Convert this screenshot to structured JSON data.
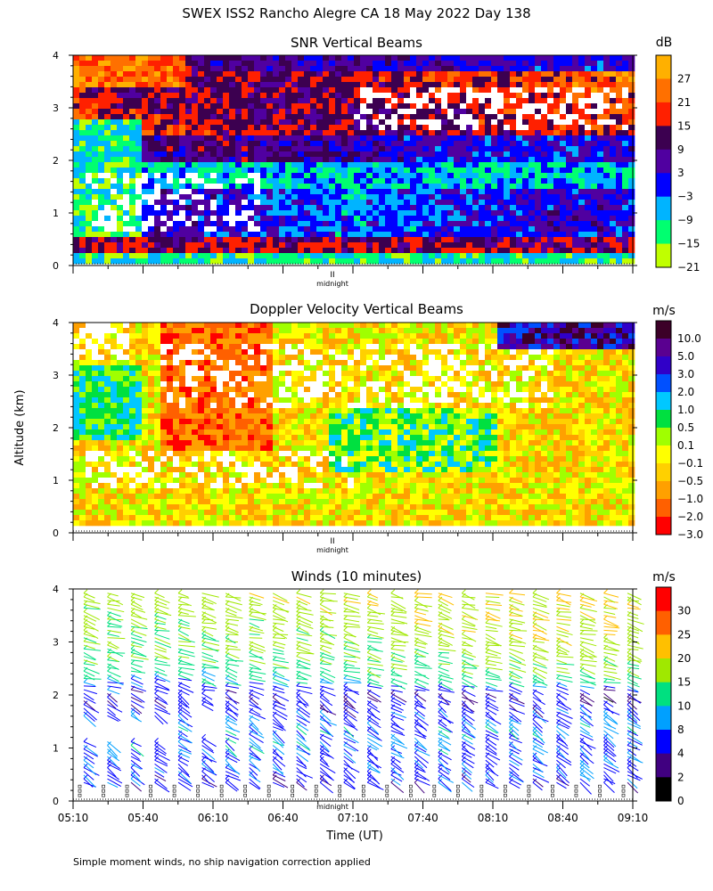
{
  "figure": {
    "title": "SWEX ISS2 Rancho Alegre CA  18 May 2022 Day 138",
    "ylabel": "Altitude (km)",
    "xlabel": "Time (UT)",
    "footnote": "Simple moment winds, no ship navigation correction applied",
    "marker_label": "midnight",
    "marker_symbol": "II"
  },
  "chart_data": [
    {
      "type": "heatmap",
      "title": "SNR Vertical Beams",
      "colorbar_unit": "dB",
      "colorbar_ticks": [
        "27",
        "21",
        "15",
        "9",
        "3",
        "−3",
        "−9",
        "−15",
        "−21"
      ],
      "colorbar_colors": [
        "#ffb000",
        "#ff7000",
        "#ff2000",
        "#3c0050",
        "#5000a0",
        "#0000ff",
        "#00b4ff",
        "#00ff70",
        "#c0ff00"
      ],
      "ylim": [
        0,
        4
      ],
      "yticks": [
        "0",
        "1",
        "2",
        "3",
        "4"
      ],
      "xlim": [
        "05:10",
        "09:10"
      ],
      "description_levels": {
        "layers": [
          {
            "altitude_km": [
              0.2,
              0.5
            ],
            "snr_db": 9
          },
          {
            "altitude_km": [
              0.5,
              1.5
            ],
            "snr_db": -3
          },
          {
            "altitude_km": [
              1.5,
              2.0
            ],
            "snr_db": -9
          },
          {
            "altitude_km": [
              2.0,
              2.5
            ],
            "snr_db": 3
          },
          {
            "altitude_km": [
              2.5,
              3.7
            ],
            "snr_db": 15
          },
          {
            "altitude_km": [
              3.7,
              4.0
            ],
            "snr_db": 9
          }
        ]
      }
    },
    {
      "type": "heatmap",
      "title": "Doppler Velocity Vertical Beams",
      "colorbar_unit": "m/s",
      "colorbar_ticks": [
        "10.0",
        "5.0",
        "3.0",
        "2.0",
        "1.0",
        "0.5",
        "0.1",
        "−0.1",
        "−0.5",
        "−1.0",
        "−2.0",
        "−3.0"
      ],
      "colorbar_colors": [
        "#3c0028",
        "#5a0090",
        "#3000c8",
        "#0050ff",
        "#00c8ff",
        "#00e040",
        "#a0ff00",
        "#ffff00",
        "#ffd000",
        "#ffa000",
        "#ff6000",
        "#ff0000"
      ],
      "ylim": [
        0,
        4
      ],
      "yticks": [
        "0",
        "1",
        "2",
        "3",
        "4"
      ],
      "xlim": [
        "05:10",
        "09:10"
      ]
    },
    {
      "type": "scatter",
      "subtype": "wind-barbs",
      "title": "Winds (10 minutes)",
      "colorbar_unit": "m/s",
      "colorbar_ticks": [
        "30",
        "25",
        "20",
        "15",
        "10",
        "8",
        "4",
        "2",
        "0"
      ],
      "colorbar_colors": [
        "#ff0000",
        "#ff6000",
        "#ffc000",
        "#a0e800",
        "#00e080",
        "#00a0ff",
        "#0000ff",
        "#400080",
        "#000000"
      ],
      "ylim": [
        0,
        4
      ],
      "yticks": [
        "0",
        "1",
        "2",
        "3",
        "4"
      ],
      "x": [
        "05:10",
        "05:40",
        "06:10",
        "06:40",
        "07:10",
        "07:40",
        "08:10",
        "08:40",
        "09:10"
      ],
      "profile_times": [
        "05:10",
        "05:20",
        "05:30",
        "05:40",
        "05:50",
        "06:00",
        "06:10",
        "06:20",
        "06:30",
        "06:40",
        "06:50",
        "07:00",
        "07:10",
        "07:20",
        "07:30",
        "07:40",
        "07:50",
        "08:00",
        "08:10",
        "08:20",
        "08:30",
        "08:40",
        "08:50",
        "09:00"
      ],
      "wind_profile": {
        "altitude_km": [
          0.4,
          1.0,
          1.5,
          2.0,
          2.5,
          3.0,
          3.5,
          4.0
        ],
        "speed_ms": [
          6,
          8,
          8,
          4,
          12,
          15,
          16,
          17
        ]
      }
    }
  ]
}
